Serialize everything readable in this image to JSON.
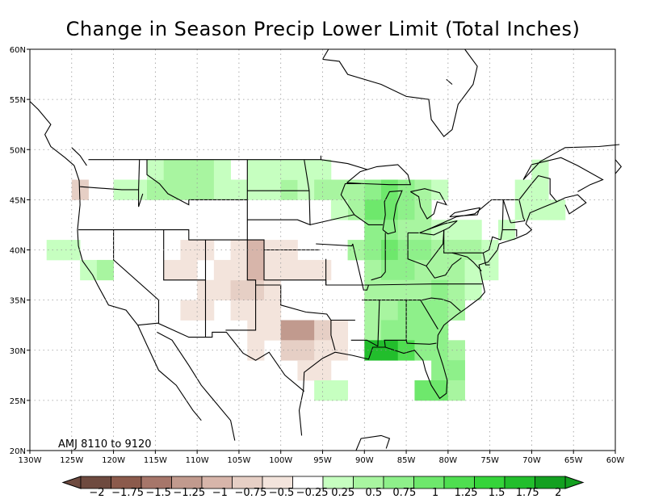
{
  "title": "Change in Season Precip Lower Limit (Total Inches)",
  "period_label": "AMJ 8110 to 9120",
  "map": {
    "lon_range": [
      -130,
      -60
    ],
    "lat_range": [
      20,
      60
    ],
    "lon_ticks": [
      "130W",
      "125W",
      "120W",
      "115W",
      "110W",
      "105W",
      "100W",
      "95W",
      "90W",
      "85W",
      "80W",
      "75W",
      "70W",
      "65W",
      "60W"
    ],
    "lat_ticks": [
      "20N",
      "25N",
      "30N",
      "35N",
      "40N",
      "45N",
      "50N",
      "55N",
      "60N"
    ],
    "grid": "dotted"
  },
  "colorbar": {
    "labels": [
      "−2",
      "−1.75",
      "−1.5",
      "−1.25",
      "−1",
      "−0.75",
      "−0.5",
      "−0.25",
      "0.25",
      "0.5",
      "0.75",
      "1",
      "1.25",
      "1.5",
      "1.75",
      "2"
    ],
    "colors": [
      "#6e4a3f",
      "#8b5a4c",
      "#a6766a",
      "#c19a8e",
      "#d7b5aa",
      "#e6cfc5",
      "#f3e4dc",
      "#ffffff",
      "#c6ffc0",
      "#a8f5a0",
      "#8ef08a",
      "#6ee86c",
      "#4fde50",
      "#35d43a",
      "#22be2c",
      "#13a020"
    ]
  },
  "cells_legend": "Each cell: [lon_west, lat_south, class] where class -7..-1 = brown shades, 1..8 = green shades",
  "cells": [
    [
      -125,
      45,
      -2
    ],
    [
      -120,
      45,
      1
    ],
    [
      -118,
      45,
      1
    ],
    [
      -116,
      45,
      2
    ],
    [
      -114,
      45,
      2
    ],
    [
      -112,
      45,
      2
    ],
    [
      -110,
      45,
      2
    ],
    [
      -108,
      45,
      1
    ],
    [
      -106,
      45,
      1
    ],
    [
      -104,
      45,
      1
    ],
    [
      -102,
      45,
      1
    ],
    [
      -100,
      45,
      2
    ],
    [
      -98,
      45,
      1
    ],
    [
      -116,
      47,
      1
    ],
    [
      -114,
      47,
      2
    ],
    [
      -112,
      47,
      2
    ],
    [
      -110,
      47,
      2
    ],
    [
      -108,
      47,
      1
    ],
    [
      -104,
      47,
      1
    ],
    [
      -102,
      47,
      1
    ],
    [
      -100,
      47,
      1
    ],
    [
      -98,
      47,
      1
    ],
    [
      -96,
      47,
      1
    ],
    [
      -96,
      45,
      2
    ],
    [
      -94,
      45,
      2
    ],
    [
      -92,
      45,
      2
    ],
    [
      -90,
      45,
      3
    ],
    [
      -88,
      45,
      4
    ],
    [
      -86,
      45,
      3
    ],
    [
      -84,
      45,
      2
    ],
    [
      -82,
      45,
      1
    ],
    [
      -90,
      43,
      4
    ],
    [
      -88,
      43,
      4
    ],
    [
      -86,
      43,
      3
    ],
    [
      -84,
      43,
      2
    ],
    [
      -92,
      43,
      2
    ],
    [
      -94,
      43,
      1
    ],
    [
      -90,
      41,
      3
    ],
    [
      -88,
      41,
      3
    ],
    [
      -86,
      41,
      2
    ],
    [
      -84,
      41,
      2
    ],
    [
      -82,
      41,
      1
    ],
    [
      -80,
      41,
      1
    ],
    [
      -78,
      41,
      1
    ],
    [
      -92,
      39,
      2
    ],
    [
      -90,
      39,
      3
    ],
    [
      -88,
      39,
      4
    ],
    [
      -86,
      39,
      3
    ],
    [
      -84,
      39,
      3
    ],
    [
      -82,
      39,
      2
    ],
    [
      -80,
      39,
      2
    ],
    [
      -78,
      39,
      2
    ],
    [
      -76,
      39,
      1
    ],
    [
      -90,
      37,
      2
    ],
    [
      -88,
      37,
      3
    ],
    [
      -86,
      37,
      3
    ],
    [
      -84,
      37,
      2
    ],
    [
      -82,
      37,
      2
    ],
    [
      -80,
      37,
      2
    ],
    [
      -78,
      37,
      1
    ],
    [
      -76,
      37,
      1
    ],
    [
      -90,
      35,
      2
    ],
    [
      -88,
      35,
      2
    ],
    [
      -86,
      35,
      2
    ],
    [
      -84,
      35,
      2
    ],
    [
      -82,
      35,
      3
    ],
    [
      -80,
      35,
      2
    ],
    [
      -78,
      35,
      1
    ],
    [
      -90,
      33,
      2
    ],
    [
      -88,
      33,
      2
    ],
    [
      -86,
      33,
      3
    ],
    [
      -84,
      33,
      3
    ],
    [
      -82,
      33,
      3
    ],
    [
      -80,
      33,
      2
    ],
    [
      -90,
      31,
      2
    ],
    [
      -88,
      31,
      3
    ],
    [
      -86,
      31,
      3
    ],
    [
      -84,
      31,
      3
    ],
    [
      -82,
      31,
      3
    ],
    [
      -90,
      29,
      7
    ],
    [
      -88,
      29,
      7
    ],
    [
      -86,
      29,
      5
    ],
    [
      -84,
      29,
      3
    ],
    [
      -82,
      29,
      3
    ],
    [
      -80,
      29,
      2
    ],
    [
      -82,
      27,
      3
    ],
    [
      -80,
      27,
      3
    ],
    [
      -84,
      25,
      4
    ],
    [
      -82,
      25,
      4
    ],
    [
      -80,
      25,
      2
    ],
    [
      -128,
      39,
      1
    ],
    [
      -126,
      39,
      1
    ],
    [
      -124,
      37,
      1
    ],
    [
      -122,
      37,
      2
    ],
    [
      -74,
      41,
      1
    ],
    [
      -72,
      43,
      1
    ],
    [
      -70,
      43,
      1
    ],
    [
      -72,
      45,
      1
    ],
    [
      -70,
      45,
      1
    ],
    [
      -70,
      47,
      1
    ],
    [
      -68,
      43,
      1
    ],
    [
      -110,
      35,
      -1
    ],
    [
      -108,
      35,
      -1
    ],
    [
      -106,
      35,
      -2
    ],
    [
      -104,
      35,
      -2
    ],
    [
      -102,
      35,
      -1
    ],
    [
      -112,
      33,
      -1
    ],
    [
      -110,
      33,
      -1
    ],
    [
      -106,
      33,
      -1
    ],
    [
      -104,
      33,
      -1
    ],
    [
      -102,
      33,
      -1
    ],
    [
      -108,
      37,
      -1
    ],
    [
      -106,
      37,
      -1
    ],
    [
      -104,
      37,
      -3
    ],
    [
      -102,
      37,
      -1
    ],
    [
      -100,
      37,
      -1
    ],
    [
      -98,
      37,
      -1
    ],
    [
      -96,
      37,
      -1
    ],
    [
      -106,
      39,
      -1
    ],
    [
      -104,
      39,
      -3
    ],
    [
      -102,
      39,
      -1
    ],
    [
      -100,
      39,
      -1
    ],
    [
      -102,
      31,
      -1
    ],
    [
      -100,
      31,
      -4
    ],
    [
      -98,
      31,
      -4
    ],
    [
      -96,
      31,
      -2
    ],
    [
      -94,
      31,
      -1
    ],
    [
      -100,
      29,
      -2
    ],
    [
      -98,
      29,
      -2
    ],
    [
      -96,
      29,
      -1
    ],
    [
      -94,
      29,
      -1
    ],
    [
      -104,
      31,
      -1
    ],
    [
      -104,
      29,
      -1
    ],
    [
      -98,
      27,
      -1
    ],
    [
      -96,
      27,
      -1
    ],
    [
      -110,
      39,
      -1
    ],
    [
      -112,
      37,
      -1
    ],
    [
      -112,
      39,
      -1
    ],
    [
      -114,
      37,
      -1
    ],
    [
      -96,
      25,
      1
    ],
    [
      -94,
      25,
      1
    ]
  ]
}
